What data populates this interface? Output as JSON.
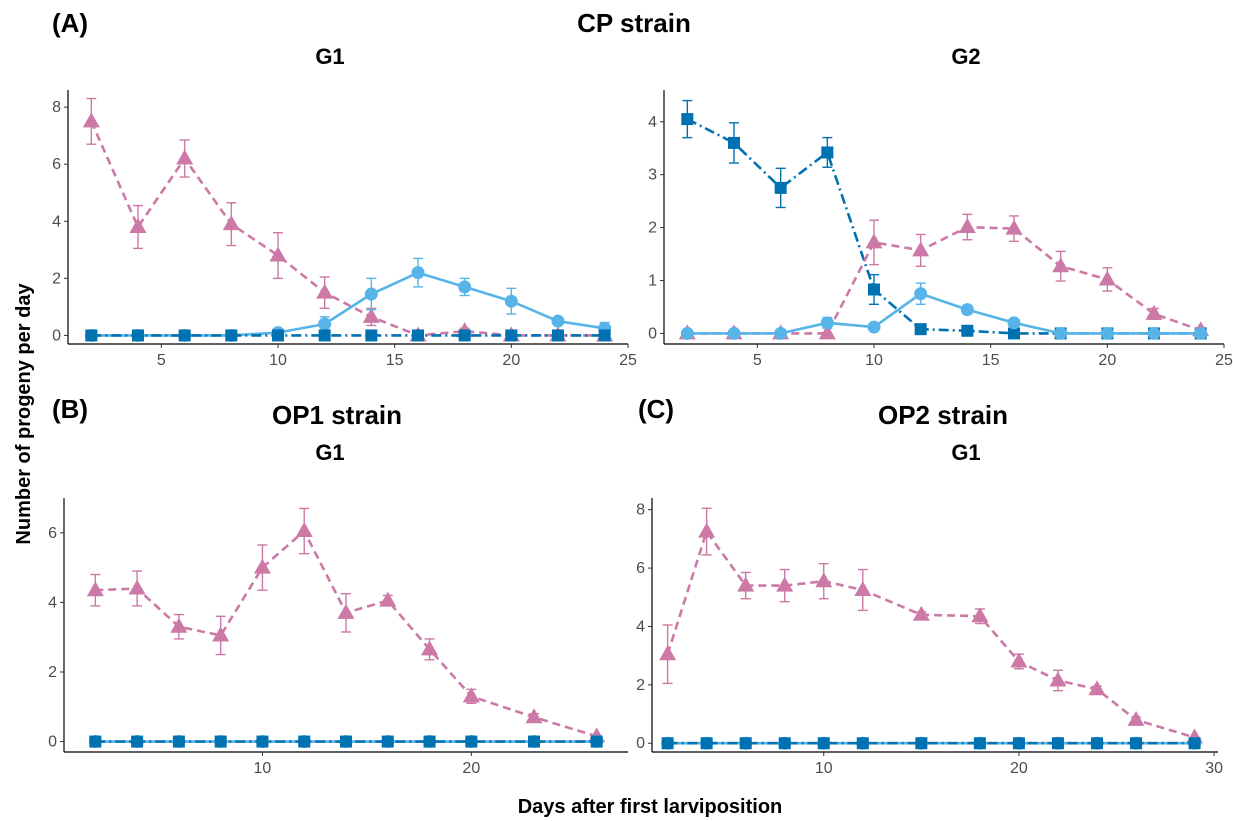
{
  "labels": {
    "panel_a": "(A)",
    "panel_b": "(B)",
    "panel_c": "(C)",
    "cp_strain": "CP strain",
    "op1_strain": "OP1 strain",
    "op2_strain": "OP2 strain",
    "ylabel": "Number of progeny per day",
    "xlabel": "Days after first larviposition"
  },
  "colors": {
    "pink": "#CC79A7",
    "light_blue": "#56B4E9",
    "dark_blue": "#0072B2"
  },
  "chart_data": [
    {
      "type": "line",
      "title": "G1",
      "xlim": [
        1,
        25
      ],
      "ylim": [
        -0.3,
        8.6
      ],
      "xticks": [
        5,
        10,
        15,
        20,
        25
      ],
      "yticks": [
        0,
        2,
        4,
        6,
        8
      ],
      "series": [
        {
          "style": "pink",
          "marker": "triangle",
          "dash": "dashed",
          "x": [
            2,
            4,
            6,
            8,
            10,
            12,
            14,
            16,
            18,
            20,
            22,
            24
          ],
          "y": [
            7.5,
            3.8,
            6.2,
            3.9,
            2.8,
            1.5,
            0.65,
            0,
            0.15,
            0,
            0,
            0
          ],
          "err": [
            0.8,
            0.75,
            0.65,
            0.75,
            0.8,
            0.55,
            0.3,
            0,
            0.1,
            0,
            0,
            0
          ]
        },
        {
          "style": "light_blue",
          "marker": "circle",
          "dash": "solid",
          "x": [
            2,
            4,
            6,
            8,
            10,
            12,
            14,
            16,
            18,
            20,
            22,
            24
          ],
          "y": [
            0,
            0,
            0,
            0,
            0.1,
            0.4,
            1.45,
            2.2,
            1.7,
            1.2,
            0.5,
            0.25
          ],
          "err": [
            0,
            0,
            0,
            0,
            0.05,
            0.25,
            0.55,
            0.5,
            0.3,
            0.45,
            0.1,
            0.2
          ]
        },
        {
          "style": "dark_blue",
          "marker": "square",
          "dash": "dotdash",
          "x": [
            2,
            4,
            6,
            8,
            10,
            12,
            14,
            16,
            18,
            20,
            22,
            24
          ],
          "y": [
            0,
            0,
            0,
            0,
            0,
            0,
            0,
            0,
            0,
            0,
            0,
            0
          ],
          "err": [
            0,
            0,
            0,
            0,
            0,
            0,
            0,
            0,
            0,
            0,
            0,
            0
          ]
        }
      ]
    },
    {
      "type": "line",
      "title": "G2",
      "xlim": [
        1,
        25
      ],
      "ylim": [
        -0.2,
        4.6
      ],
      "xticks": [
        5,
        10,
        15,
        20,
        25
      ],
      "yticks": [
        0,
        1,
        2,
        3,
        4
      ],
      "series": [
        {
          "style": "dark_blue",
          "marker": "square",
          "dash": "dotdash",
          "x": [
            2,
            4,
            6,
            8,
            10,
            12,
            14,
            16,
            18,
            20,
            22,
            24
          ],
          "y": [
            4.05,
            3.6,
            2.75,
            3.42,
            0.83,
            0.08,
            0.05,
            0,
            0,
            0,
            0,
            0
          ],
          "err": [
            0.35,
            0.38,
            0.37,
            0.28,
            0.28,
            0.04,
            0,
            0,
            0,
            0,
            0,
            0
          ]
        },
        {
          "style": "pink",
          "marker": "triangle",
          "dash": "dashed",
          "x": [
            2,
            4,
            6,
            8,
            10,
            12,
            14,
            16,
            18,
            20,
            22,
            24
          ],
          "y": [
            0,
            0,
            0,
            0,
            1.72,
            1.57,
            2.01,
            1.98,
            1.27,
            1.02,
            0.37,
            0.06
          ],
          "err": [
            0,
            0,
            0,
            0,
            0.42,
            0.3,
            0.24,
            0.24,
            0.28,
            0.22,
            0.1,
            0.05
          ]
        },
        {
          "style": "light_blue",
          "marker": "circle",
          "dash": "solid",
          "x": [
            2,
            4,
            6,
            8,
            10,
            12,
            14,
            16,
            18,
            20,
            22,
            24
          ],
          "y": [
            0,
            0,
            0,
            0.2,
            0.12,
            0.75,
            0.45,
            0.2,
            0,
            0,
            0,
            0
          ],
          "err": [
            0,
            0,
            0,
            0.1,
            0,
            0.2,
            0.08,
            0.05,
            0,
            0,
            0,
            0
          ]
        }
      ]
    },
    {
      "type": "line",
      "title": "G1",
      "xlim": [
        0.5,
        27.5
      ],
      "ylim": [
        -0.3,
        7.0
      ],
      "xticks": [
        10,
        20
      ],
      "yticks": [
        0,
        2,
        4,
        6
      ],
      "series": [
        {
          "style": "pink",
          "marker": "triangle",
          "dash": "dashed",
          "x": [
            2,
            4,
            6,
            8,
            10,
            12,
            14,
            16,
            18,
            20,
            23,
            26
          ],
          "y": [
            4.35,
            4.4,
            3.3,
            3.05,
            5.0,
            6.05,
            3.7,
            4.05,
            2.65,
            1.3,
            0.7,
            0.15
          ],
          "err": [
            0.45,
            0.5,
            0.35,
            0.55,
            0.65,
            0.65,
            0.55,
            0.15,
            0.3,
            0.2,
            0.1,
            0
          ]
        },
        {
          "style": "light_blue",
          "marker": "circle",
          "dash": "solid",
          "x": [
            2,
            4,
            6,
            8,
            10,
            12,
            14,
            16,
            18,
            20,
            23,
            26
          ],
          "y": [
            0,
            0,
            0,
            0,
            0,
            0,
            0,
            0,
            0,
            0,
            0,
            0
          ],
          "err": [
            0,
            0,
            0,
            0,
            0,
            0,
            0,
            0,
            0,
            0,
            0,
            0
          ]
        },
        {
          "style": "dark_blue",
          "marker": "square",
          "dash": "dotdash",
          "x": [
            2,
            4,
            6,
            8,
            10,
            12,
            14,
            16,
            18,
            20,
            23,
            26
          ],
          "y": [
            0,
            0,
            0,
            0,
            0,
            0,
            0,
            0,
            0,
            0,
            0,
            0
          ],
          "err": [
            0,
            0,
            0,
            0,
            0,
            0,
            0,
            0,
            0,
            0,
            0,
            0
          ]
        }
      ]
    },
    {
      "type": "line",
      "title": "G1",
      "xlim": [
        1.2,
        30.2
      ],
      "ylim": [
        -0.3,
        8.4
      ],
      "xticks": [
        10,
        20,
        30
      ],
      "yticks": [
        0,
        2,
        4,
        6,
        8
      ],
      "series": [
        {
          "style": "pink",
          "marker": "triangle",
          "dash": "dashed",
          "x": [
            2,
            4,
            6,
            8,
            10,
            12,
            15,
            18,
            20,
            22,
            24,
            26,
            29
          ],
          "y": [
            3.05,
            7.25,
            5.4,
            5.4,
            5.55,
            5.25,
            4.4,
            4.35,
            2.8,
            2.15,
            1.85,
            0.8,
            0.2
          ],
          "err": [
            1.0,
            0.8,
            0.45,
            0.55,
            0.6,
            0.7,
            0.1,
            0.25,
            0.25,
            0.35,
            0.1,
            0.1,
            0
          ]
        },
        {
          "style": "light_blue",
          "marker": "circle",
          "dash": "solid",
          "x": [
            2,
            4,
            6,
            8,
            10,
            12,
            15,
            18,
            20,
            22,
            24,
            26,
            29
          ],
          "y": [
            0,
            0,
            0,
            0,
            0,
            0,
            0,
            0,
            0,
            0,
            0,
            0,
            0
          ],
          "err": [
            0,
            0,
            0,
            0,
            0,
            0,
            0,
            0,
            0,
            0,
            0,
            0,
            0
          ]
        },
        {
          "style": "dark_blue",
          "marker": "square",
          "dash": "dotdash",
          "x": [
            2,
            4,
            6,
            8,
            10,
            12,
            15,
            18,
            20,
            22,
            24,
            26,
            29
          ],
          "y": [
            0,
            0,
            0,
            0,
            0,
            0,
            0,
            0,
            0,
            0,
            0,
            0,
            0
          ],
          "err": [
            0,
            0,
            0,
            0,
            0,
            0,
            0,
            0,
            0,
            0,
            0,
            0,
            0
          ]
        }
      ]
    }
  ]
}
